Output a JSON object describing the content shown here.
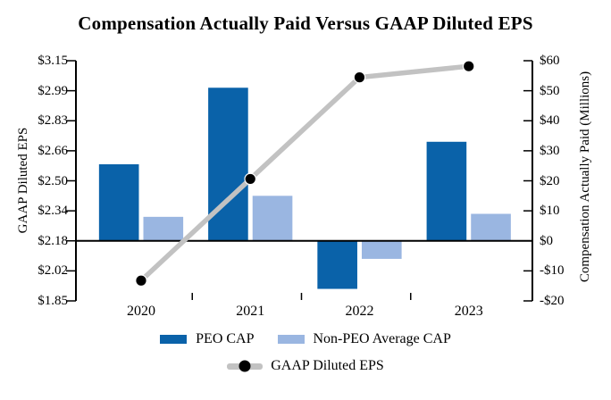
{
  "chart_data": {
    "type": "combo-bar-line",
    "title": "Compensation Actually Paid Versus GAAP Diluted EPS",
    "categories": [
      "2020",
      "2021",
      "2022",
      "2023"
    ],
    "bar_series": [
      {
        "name": "PEO CAP",
        "color": "#0A62A9",
        "axis": "right",
        "values": [
          25.5,
          51,
          -16,
          33
        ]
      },
      {
        "name": "Non-PEO Average CAP",
        "color": "#9AB6E1",
        "axis": "right",
        "values": [
          8,
          15,
          -6,
          9
        ]
      }
    ],
    "line_series": {
      "name": "GAAP Diluted EPS",
      "color": "#C2C2C2",
      "marker_color": "#000000",
      "axis": "left",
      "values": [
        1.96,
        2.51,
        3.06,
        3.12
      ]
    },
    "left_axis": {
      "title": "GAAP Diluted EPS",
      "min": 1.85,
      "max": 3.15,
      "tick_labels": [
        "$3.15",
        "$2.99",
        "$2.83",
        "$2.66",
        "$2.50",
        "$2.34",
        "$2.18",
        "$2.02",
        "$1.85"
      ]
    },
    "right_axis": {
      "title": "Compensation Actually Paid (Millions)",
      "min": -20,
      "max": 60,
      "tick_labels": [
        "$60",
        "$50",
        "$40",
        "$30",
        "$20",
        "$10",
        "$0",
        "-$10",
        "-$20"
      ]
    },
    "baseline_right_value": 0,
    "axis_color": "#000000",
    "grid": "off",
    "legend_position": "bottom"
  }
}
